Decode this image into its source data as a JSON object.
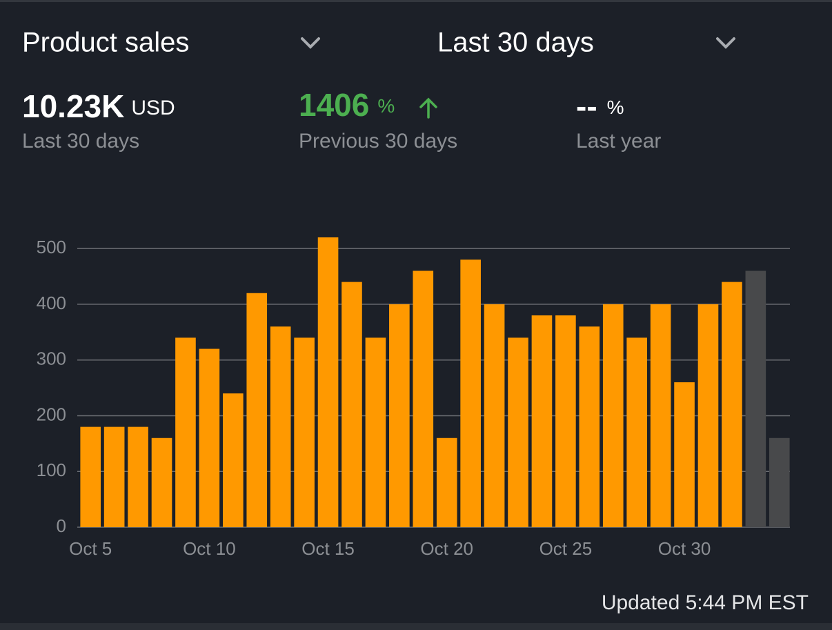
{
  "header": {
    "metric": "Product sales",
    "period": "Last 30 days"
  },
  "stats": [
    {
      "value": "10.23K",
      "unit": "USD",
      "label": "Last 30 days"
    },
    {
      "value": "1406",
      "unit": "%",
      "label": "Previous 30 days"
    },
    {
      "value": "--",
      "unit": "%",
      "label": "Last year"
    }
  ],
  "chart_data": {
    "type": "bar",
    "categories": [
      "Oct 5",
      null,
      null,
      null,
      null,
      "Oct 10",
      null,
      null,
      null,
      null,
      "Oct 15",
      null,
      null,
      null,
      null,
      "Oct 20",
      null,
      null,
      null,
      null,
      "Oct 25",
      null,
      null,
      null,
      null,
      "Oct 30",
      null,
      null,
      null,
      null
    ],
    "values": [
      180,
      180,
      180,
      160,
      340,
      320,
      240,
      420,
      360,
      340,
      520,
      440,
      340,
      400,
      460,
      160,
      480,
      400,
      340,
      380,
      380,
      360,
      400,
      340,
      400,
      260,
      400,
      440,
      460,
      160
    ],
    "colors": [
      "#ff9900",
      "#ff9900",
      "#ff9900",
      "#ff9900",
      "#ff9900",
      "#ff9900",
      "#ff9900",
      "#ff9900",
      "#ff9900",
      "#ff9900",
      "#ff9900",
      "#ff9900",
      "#ff9900",
      "#ff9900",
      "#ff9900",
      "#ff9900",
      "#ff9900",
      "#ff9900",
      "#ff9900",
      "#ff9900",
      "#ff9900",
      "#ff9900",
      "#ff9900",
      "#ff9900",
      "#ff9900",
      "#ff9900",
      "#ff9900",
      "#ff9900",
      "#48494b",
      "#48494b"
    ],
    "ylim": [
      0,
      520
    ],
    "yticks": [
      0,
      100,
      200,
      300,
      400,
      500
    ],
    "grid": true
  },
  "footer": "Updated 5:44 PM EST"
}
